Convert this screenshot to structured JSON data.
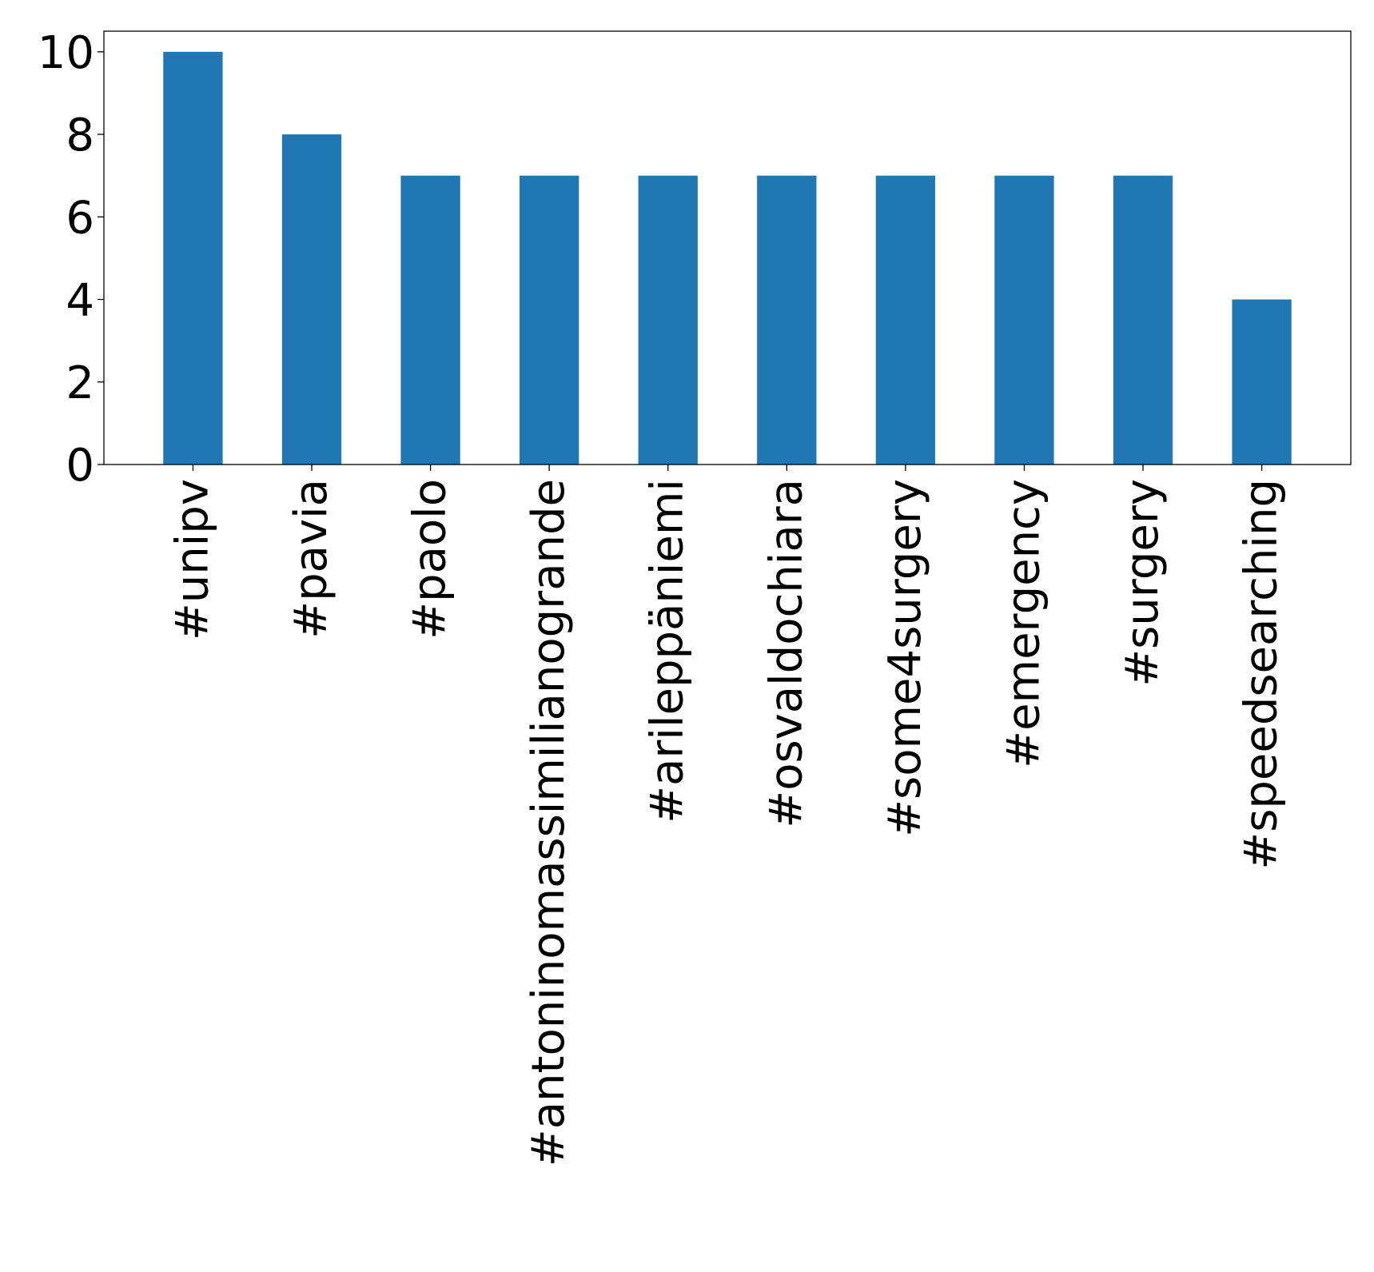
{
  "chart_data": {
    "type": "bar",
    "title": "",
    "xlabel": "",
    "ylabel": "",
    "categories": [
      "#unipv",
      "#pavia",
      "#paolo",
      "#antoninomassimilianogrande",
      "#arileppäniemi",
      "#osvaldochiara",
      "#some4surgery",
      "#emergency",
      "#surgery",
      "#speedsearching"
    ],
    "values": [
      10,
      8,
      7,
      7,
      7,
      7,
      7,
      7,
      7,
      4
    ],
    "ylim": [
      0,
      10.5
    ],
    "yticks": [
      0,
      2,
      4,
      6,
      8,
      10
    ],
    "ytick_labels": [
      "0",
      "2",
      "4",
      "6",
      "8",
      "10"
    ],
    "xtick_rotation": 90,
    "grid": false,
    "legend": "none",
    "bar_color": "#1f77b4"
  }
}
